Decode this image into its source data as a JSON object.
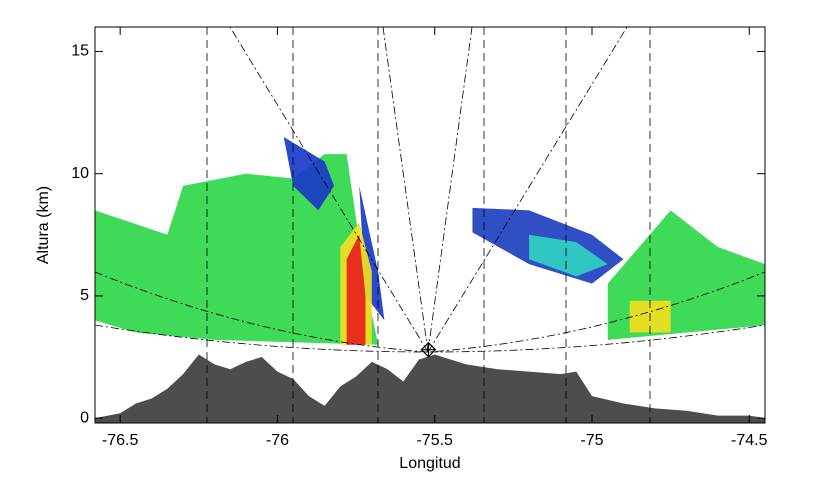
{
  "chart_data": {
    "type": "section",
    "xlabel": "Longitud",
    "ylabel": "Altura (km)",
    "xlim": [
      -76.58,
      -74.45
    ],
    "ylim": [
      -0.2,
      16
    ],
    "xticks": [
      -76.5,
      -76.0,
      -75.5,
      -75.0,
      -74.5
    ],
    "yticks": [
      0,
      5,
      10,
      15
    ],
    "terrain": {
      "color": "#4d4d4d",
      "x": [
        -76.58,
        -76.5,
        -76.45,
        -76.4,
        -76.35,
        -76.3,
        -76.25,
        -76.2,
        -76.15,
        -76.1,
        -76.05,
        -76.0,
        -75.95,
        -75.9,
        -75.85,
        -75.8,
        -75.75,
        -75.7,
        -75.65,
        -75.6,
        -75.55,
        -75.5,
        -75.45,
        -75.4,
        -75.3,
        -75.2,
        -75.1,
        -75.05,
        -75.0,
        -74.9,
        -74.8,
        -74.7,
        -74.6,
        -74.5,
        -74.45
      ],
      "values": [
        0,
        0.2,
        0.6,
        0.8,
        1.2,
        1.8,
        2.6,
        2.2,
        2.0,
        2.3,
        2.5,
        1.9,
        1.6,
        0.9,
        0.5,
        1.3,
        1.7,
        2.3,
        2.0,
        1.5,
        2.4,
        2.6,
        2.4,
        2.2,
        2.0,
        1.9,
        1.8,
        1.9,
        0.9,
        0.6,
        0.4,
        0.3,
        0.1,
        0.1,
        0
      ]
    },
    "echoes": [
      {
        "color": "#2fd84a",
        "x": [
          -76.58,
          -76.58,
          -76.35,
          -76.3,
          -76.1,
          -75.95,
          -75.85,
          -75.78,
          -75.72,
          -75.68,
          -76.2,
          -76.45
        ],
        "values": [
          4,
          8.5,
          7.5,
          9.5,
          10,
          9.8,
          10.8,
          10.8,
          5.5,
          3,
          3.2,
          3.5
        ]
      },
      {
        "color": "#1a3bc8",
        "x": [
          -75.98,
          -75.85,
          -75.82,
          -75.87,
          -75.95
        ],
        "values": [
          11.5,
          10.5,
          9.5,
          8.5,
          9.5
        ]
      },
      {
        "color": "#1a3bc8",
        "x": [
          -75.74,
          -75.68,
          -75.66,
          -75.72
        ],
        "values": [
          9.5,
          6,
          4,
          5
        ]
      },
      {
        "color": "#f2e020",
        "x": [
          -75.8,
          -75.8,
          -75.74,
          -75.7,
          -75.7
        ],
        "values": [
          3,
          7,
          8,
          6,
          3
        ]
      },
      {
        "color": "#e8201a",
        "x": [
          -75.78,
          -75.78,
          -75.74,
          -75.72,
          -75.72
        ],
        "values": [
          3,
          6.5,
          7.5,
          5,
          3
        ]
      },
      {
        "color": "#2040c0",
        "x": [
          -75.38,
          -75.2,
          -75.0,
          -74.9,
          -75.0,
          -75.2,
          -75.38
        ],
        "values": [
          8.6,
          8.5,
          7.5,
          6.5,
          5.5,
          6.3,
          7.6
        ]
      },
      {
        "color": "#30d0c0",
        "x": [
          -75.2,
          -75.05,
          -74.95,
          -75.05,
          -75.2
        ],
        "values": [
          7.5,
          7.2,
          6.3,
          5.8,
          6.5
        ]
      },
      {
        "color": "#2fd84a",
        "x": [
          -74.95,
          -74.95,
          -74.85,
          -74.75,
          -74.6,
          -74.45,
          -74.45
        ],
        "values": [
          3.2,
          5.5,
          7,
          8.5,
          7,
          6.3,
          3.8
        ]
      },
      {
        "color": "#f2e020",
        "x": [
          -74.88,
          -74.88,
          -74.75,
          -74.75
        ],
        "values": [
          3.5,
          4.8,
          4.8,
          3.5
        ]
      }
    ],
    "radar": {
      "x": -75.52,
      "value": 2.8
    }
  }
}
